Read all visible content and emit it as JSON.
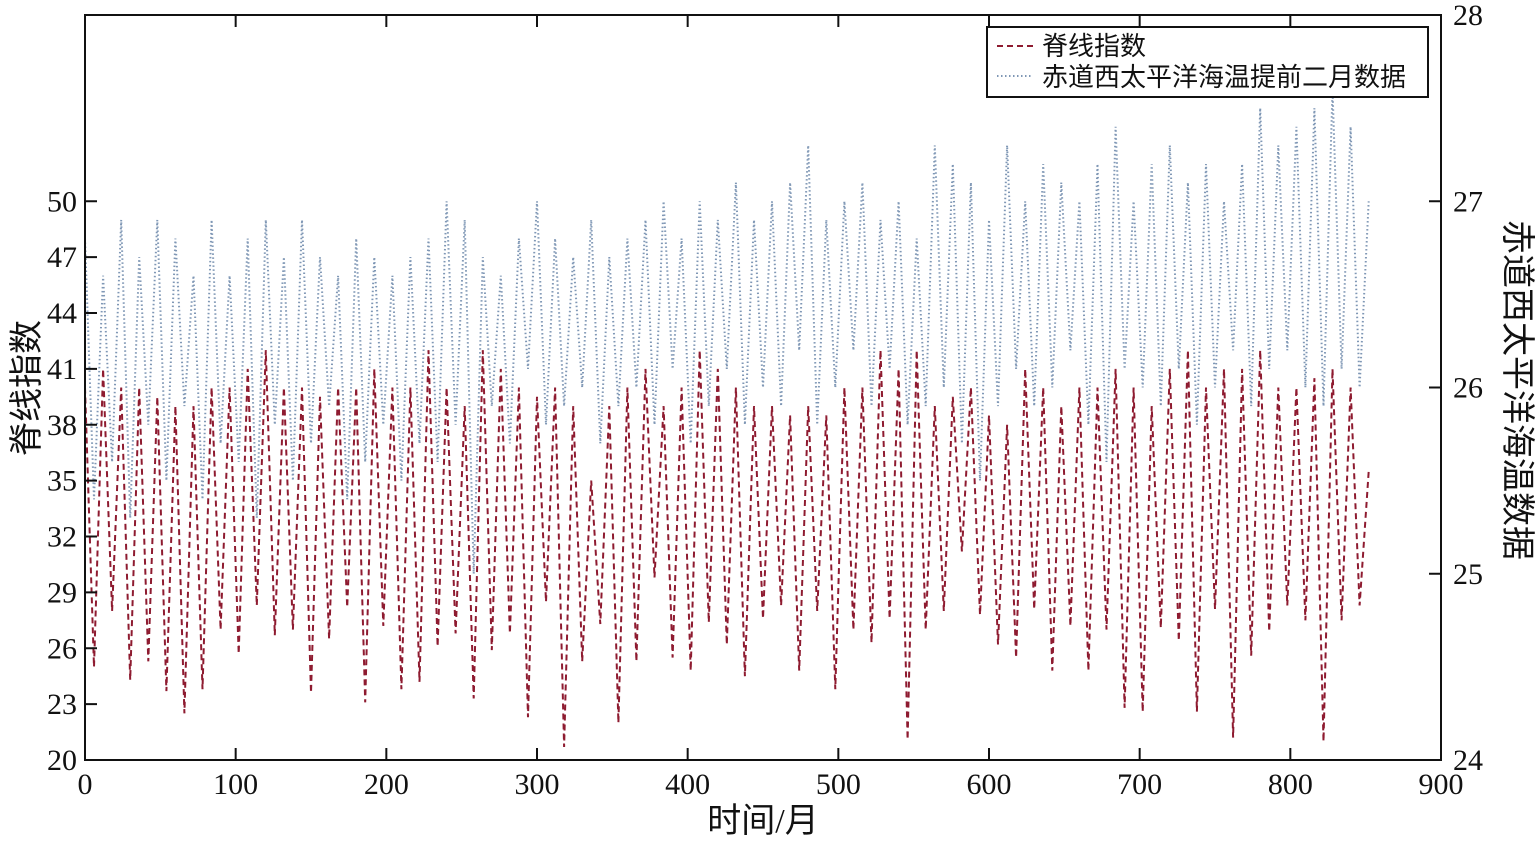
{
  "chart_data": {
    "type": "line",
    "xlabel": "时间/月",
    "ylabel_left": "脊线指数",
    "ylabel_right": "赤道西太平洋海温数据",
    "xlim": [
      0,
      900
    ],
    "ylim_left": [
      20,
      60
    ],
    "ylim_right": [
      24,
      28
    ],
    "x_ticks": [
      "0",
      "100",
      "200",
      "300",
      "400",
      "500",
      "600",
      "700",
      "800",
      "900"
    ],
    "y_left_ticks": [
      "20",
      "23",
      "26",
      "29",
      "32",
      "35",
      "38",
      "41",
      "44",
      "47",
      "50"
    ],
    "y_right_ticks": [
      "24",
      "25",
      "26",
      "27",
      "28"
    ],
    "legend_position": "top-right",
    "grid": false,
    "sampling_note_months_between_extrema": 6,
    "series": [
      {
        "name": "脊线指数",
        "axis": "left",
        "style": "dashed",
        "color": "#8e1b30",
        "peaks": [
          40,
          41,
          40,
          40,
          39.5,
          39,
          39,
          40,
          40,
          41,
          42,
          40,
          40,
          39.5,
          40,
          40,
          41,
          40,
          40,
          42,
          40,
          39,
          42,
          41,
          40,
          39.5,
          40,
          39,
          35,
          39,
          40,
          41,
          39,
          40,
          42,
          41,
          40,
          39,
          39,
          38.5,
          39,
          38.5,
          40,
          40,
          42,
          41,
          42,
          39,
          39.5,
          40,
          38.5,
          38,
          41,
          40,
          39,
          40,
          40,
          41,
          40,
          39,
          41,
          42,
          40,
          41,
          41,
          42,
          40,
          40,
          40.5,
          41,
          40,
          35.5
        ],
        "troughs": [
          25,
          28,
          24.3,
          25.3,
          23.7,
          22.5,
          23.8,
          27,
          25.7,
          28.3,
          26.7,
          27,
          23.6,
          26.5,
          28.2,
          23.1,
          27.2,
          23.8,
          24.2,
          26.1,
          26.8,
          23.3,
          25.9,
          26.8,
          22.3,
          28.5,
          20.7,
          25.3,
          27.3,
          22,
          25.3,
          29.8,
          25.5,
          24.8,
          27.4,
          26.2,
          24.5,
          27.6,
          28.3,
          24.8,
          28,
          23.8,
          27,
          26.3,
          27.6,
          21.1,
          27,
          28,
          31.2,
          27.8,
          26.2,
          25.5,
          28.1,
          24.8,
          27.2,
          24.8,
          27,
          22.8,
          22.6,
          27.1,
          26.4,
          22.6,
          28.1,
          21.2,
          25.6,
          26.9,
          28.3,
          27.5,
          21,
          27.5,
          28.3
        ]
      },
      {
        "name": "赤道西太平洋海温提前二月数据",
        "axis": "right",
        "style": "dotted",
        "color": "#7f97b5",
        "peaks": [
          26.8,
          26.6,
          26.9,
          26.7,
          26.9,
          26.8,
          26.6,
          26.9,
          26.6,
          26.8,
          26.9,
          26.7,
          26.9,
          26.7,
          26.6,
          26.8,
          26.7,
          26.6,
          26.7,
          26.8,
          27.0,
          26.9,
          26.7,
          26.6,
          26.8,
          27.0,
          26.8,
          26.7,
          26.9,
          26.7,
          26.8,
          26.9,
          27.0,
          26.8,
          27.0,
          26.9,
          27.1,
          26.9,
          27.0,
          27.1,
          27.3,
          26.9,
          27.0,
          27.1,
          26.9,
          27.0,
          26.8,
          27.3,
          27.2,
          27.1,
          26.9,
          27.3,
          27.0,
          27.2,
          27.1,
          27.0,
          27.2,
          27.4,
          27.0,
          27.2,
          27.3,
          27.1,
          27.2,
          27.0,
          27.2,
          27.5,
          27.3,
          27.4,
          27.5,
          27.6,
          27.4,
          27.0
        ],
        "troughs": [
          25.4,
          25.6,
          25.3,
          25.8,
          25.5,
          25.9,
          25.4,
          25.7,
          25.6,
          25.3,
          25.8,
          25.5,
          25.7,
          25.9,
          25.4,
          25.6,
          25.8,
          25.5,
          25.7,
          25.6,
          25.8,
          25.0,
          25.9,
          25.7,
          26.1,
          25.8,
          25.9,
          26.0,
          25.7,
          25.9,
          26.0,
          25.8,
          26.1,
          25.7,
          25.9,
          26.1,
          25.8,
          26.0,
          25.9,
          26.2,
          25.8,
          26.0,
          26.2,
          25.9,
          26.1,
          25.8,
          25.9,
          26.0,
          25.7,
          25.5,
          25.9,
          26.1,
          25.9,
          26.0,
          26.2,
          25.8,
          25.6,
          26.1,
          26.0,
          25.9,
          26.1,
          25.8,
          26.0,
          26.2,
          25.9,
          26.1,
          26.2,
          26.0,
          25.9,
          26.1,
          26.0
        ]
      }
    ]
  }
}
